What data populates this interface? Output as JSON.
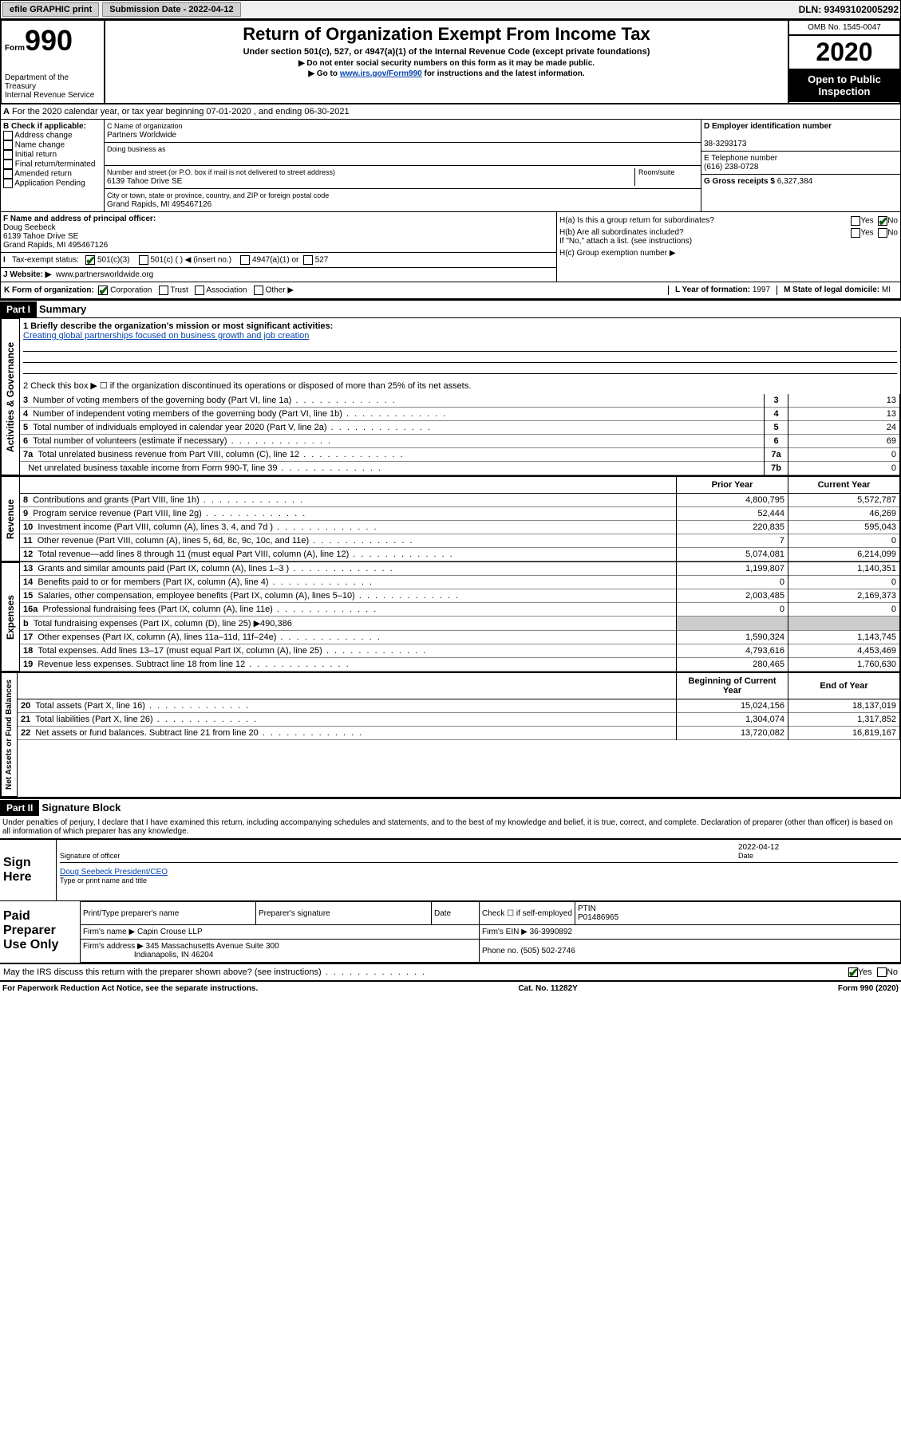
{
  "header_bar": {
    "efile": "efile GRAPHIC print",
    "submission": "Submission Date - 2022-04-12",
    "dln": "DLN: 93493102005292"
  },
  "form_header": {
    "form_label": "Form",
    "form_number": "990",
    "dept_line1": "Department of the Treasury",
    "dept_line2": "Internal Revenue Service",
    "title": "Return of Organization Exempt From Income Tax",
    "subtitle": "Under section 501(c), 527, or 4947(a)(1) of the Internal Revenue Code (except private foundations)",
    "warn1": "▶ Do not enter social security numbers on this form as it may be made public.",
    "warn2_pre": "▶ Go to ",
    "warn2_link": "www.irs.gov/Form990",
    "warn2_post": " for instructions and the latest information.",
    "omb": "OMB No. 1545-0047",
    "year": "2020",
    "open1": "Open to Public",
    "open2": "Inspection"
  },
  "section_a": "For the 2020 calendar year, or tax year beginning 07-01-2020   , and ending 06-30-2021",
  "box_b": {
    "title": "B Check if applicable:",
    "opt1": "Address change",
    "opt2": "Name change",
    "opt3": "Initial return",
    "opt4": "Final return/terminated",
    "opt5": "Amended return",
    "opt6": "Application Pending"
  },
  "box_c": {
    "name_label": "C Name of organization",
    "name": "Partners Worldwide",
    "dba_label": "Doing business as",
    "addr_label": "Number and street (or P.O. box if mail is not delivered to street address)",
    "room_label": "Room/suite",
    "addr": "6139 Tahoe Drive SE",
    "city_label": "City or town, state or province, country, and ZIP or foreign postal code",
    "city": "Grand Rapids, MI  495467126"
  },
  "box_d": {
    "label": "D Employer identification number",
    "value": "38-3293173"
  },
  "box_e": {
    "label": "E Telephone number",
    "value": "(616) 238-0728"
  },
  "box_g": {
    "label": "G Gross receipts $",
    "value": "6,327,384"
  },
  "box_f": {
    "label": "F  Name and address of principal officer:",
    "name": "Doug Seebeck",
    "addr": "6139 Tahoe Drive SE",
    "city": "Grand Rapids, MI  495467126"
  },
  "box_h": {
    "a_label": "H(a)  Is this a group return for subordinates?",
    "b_label": "H(b)  Are all subordinates included?",
    "b_note": "If \"No,\" attach a list. (see instructions)",
    "c_label": "H(c)  Group exemption number ▶",
    "yes": "Yes",
    "no": "No"
  },
  "box_i": {
    "label": "Tax-exempt status:",
    "o1": "501(c)(3)",
    "o2": "501(c) (   ) ◀ (insert no.)",
    "o3": "4947(a)(1) or",
    "o4": "527"
  },
  "box_j": {
    "label": "J   Website: ▶",
    "value": "www.partnersworldwide.org"
  },
  "box_k": {
    "label": "K Form of organization:",
    "o1": "Corporation",
    "o2": "Trust",
    "o3": "Association",
    "o4": "Other ▶"
  },
  "box_l": {
    "label": "L Year of formation:",
    "value": "1997"
  },
  "box_m": {
    "label": "M State of legal domicile:",
    "value": "MI"
  },
  "part1": {
    "header": "Part I",
    "title": "Summary",
    "tab_gov": "Activities & Governance",
    "tab_rev": "Revenue",
    "tab_exp": "Expenses",
    "tab_net": "Net Assets or Fund Balances",
    "q1a": "1  Briefly describe the organization's mission or most significant activities:",
    "q1b": "Creating global partnerships focused on business growth and job creation",
    "q2": "2   Check this box ▶ ☐  if the organization discontinued its operations or disposed of more than 25% of its net assets.",
    "rows_gov": [
      {
        "n": "3",
        "desc": "Number of voting members of the governing body (Part VI, line 1a)",
        "rn": "3",
        "val": "13"
      },
      {
        "n": "4",
        "desc": "Number of independent voting members of the governing body (Part VI, line 1b)",
        "rn": "4",
        "val": "13"
      },
      {
        "n": "5",
        "desc": "Total number of individuals employed in calendar year 2020 (Part V, line 2a)",
        "rn": "5",
        "val": "24"
      },
      {
        "n": "6",
        "desc": "Total number of volunteers (estimate if necessary)",
        "rn": "6",
        "val": "69"
      },
      {
        "n": "7a",
        "desc": "Total unrelated business revenue from Part VIII, column (C), line 12",
        "rn": "7a",
        "val": "0"
      },
      {
        "n": "",
        "desc": "Net unrelated business taxable income from Form 990-T, line 39",
        "rn": "7b",
        "val": "0"
      }
    ],
    "col_prior": "Prior Year",
    "col_current": "Current Year",
    "col_begin": "Beginning of Current Year",
    "col_end": "End of Year",
    "rows_rev": [
      {
        "n": "8",
        "desc": "Contributions and grants (Part VIII, line 1h)",
        "prior": "4,800,795",
        "curr": "5,572,787"
      },
      {
        "n": "9",
        "desc": "Program service revenue (Part VIII, line 2g)",
        "prior": "52,444",
        "curr": "46,269"
      },
      {
        "n": "10",
        "desc": "Investment income (Part VIII, column (A), lines 3, 4, and 7d )",
        "prior": "220,835",
        "curr": "595,043"
      },
      {
        "n": "11",
        "desc": "Other revenue (Part VIII, column (A), lines 5, 6d, 8c, 9c, 10c, and 11e)",
        "prior": "7",
        "curr": "0"
      },
      {
        "n": "12",
        "desc": "Total revenue—add lines 8 through 11 (must equal Part VIII, column (A), line 12)",
        "prior": "5,074,081",
        "curr": "6,214,099"
      }
    ],
    "rows_exp": [
      {
        "n": "13",
        "desc": "Grants and similar amounts paid (Part IX, column (A), lines 1–3 )",
        "prior": "1,199,807",
        "curr": "1,140,351"
      },
      {
        "n": "14",
        "desc": "Benefits paid to or for members (Part IX, column (A), line 4)",
        "prior": "0",
        "curr": "0"
      },
      {
        "n": "15",
        "desc": "Salaries, other compensation, employee benefits (Part IX, column (A), lines 5–10)",
        "prior": "2,003,485",
        "curr": "2,169,373"
      },
      {
        "n": "16a",
        "desc": "Professional fundraising fees (Part IX, column (A), line 11e)",
        "prior": "0",
        "curr": "0"
      }
    ],
    "row_16b": {
      "n": "b",
      "desc": "Total fundraising expenses (Part IX, column (D), line 25) ▶490,386"
    },
    "rows_exp2": [
      {
        "n": "17",
        "desc": "Other expenses (Part IX, column (A), lines 11a–11d, 11f–24e)",
        "prior": "1,590,324",
        "curr": "1,143,745"
      },
      {
        "n": "18",
        "desc": "Total expenses. Add lines 13–17 (must equal Part IX, column (A), line 25)",
        "prior": "4,793,616",
        "curr": "4,453,469"
      },
      {
        "n": "19",
        "desc": "Revenue less expenses. Subtract line 18 from line 12",
        "prior": "280,465",
        "curr": "1,760,630"
      }
    ],
    "rows_net": [
      {
        "n": "20",
        "desc": "Total assets (Part X, line 16)",
        "prior": "15,024,156",
        "curr": "18,137,019"
      },
      {
        "n": "21",
        "desc": "Total liabilities (Part X, line 26)",
        "prior": "1,304,074",
        "curr": "1,317,852"
      },
      {
        "n": "22",
        "desc": "Net assets or fund balances. Subtract line 21 from line 20",
        "prior": "13,720,082",
        "curr": "16,819,167"
      }
    ]
  },
  "part2": {
    "header": "Part II",
    "title": "Signature Block",
    "penalty": "Under penalties of perjury, I declare that I have examined this return, including accompanying schedules and statements, and to the best of my knowledge and belief, it is true, correct, and complete. Declaration of preparer (other than officer) is based on all information of which preparer has any knowledge.",
    "sign_label": "Sign Here",
    "sig_officer": "Signature of officer",
    "sig_date_label": "Date",
    "sig_date": "2022-04-12",
    "sig_name": "Doug Seebeck  President/CEO",
    "sig_type": "Type or print name and title",
    "prep_label": "Paid Preparer Use Only",
    "prep_name_label": "Print/Type preparer's name",
    "prep_sig_label": "Preparer's signature",
    "prep_date_label": "Date",
    "prep_check": "Check ☐ if self-employed",
    "ptin_label": "PTIN",
    "ptin": "P01486965",
    "firm_name_label": "Firm's name      ▶",
    "firm_name": "Capin Crouse LLP",
    "firm_ein_label": "Firm's EIN ▶",
    "firm_ein": "36-3990892",
    "firm_addr_label": "Firm's address ▶",
    "firm_addr1": "345 Massachusetts Avenue Suite 300",
    "firm_addr2": "Indianapolis, IN  46204",
    "phone_label": "Phone no.",
    "phone": "(505) 502-2746",
    "discuss": "May the IRS discuss this return with the preparer shown above? (see instructions)",
    "yes": "Yes",
    "no": "No"
  },
  "footer": {
    "left": "For Paperwork Reduction Act Notice, see the separate instructions.",
    "mid": "Cat. No. 11282Y",
    "right": "Form 990 (2020)"
  },
  "colors": {
    "link": "#0645ad",
    "black": "#000000",
    "grey_bg": "#cccccc",
    "check_green": "#0a5a0a"
  }
}
